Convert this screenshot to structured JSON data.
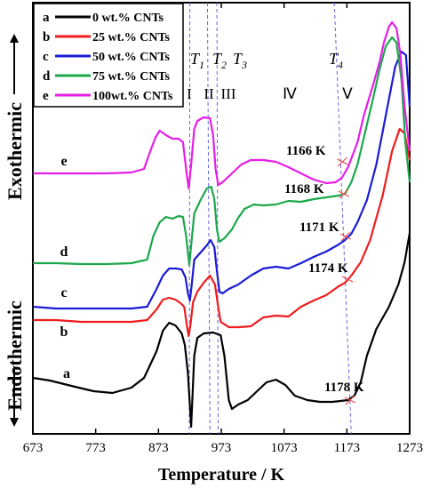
{
  "chart_data": {
    "type": "line",
    "xlabel": "Temperature / K",
    "ylabel_top": "Exothermic",
    "ylabel_bottom": "Endothermic",
    "xlim": [
      673,
      1273
    ],
    "xticks": [
      673,
      773,
      873,
      973,
      1073,
      1173,
      1273
    ],
    "legend": {
      "position": "top-left",
      "entries": [
        {
          "key": "a",
          "label": "0 wt.% CNTs",
          "color": "#000000"
        },
        {
          "key": "b",
          "label": "25 wt.% CNTs",
          "color": "#ee1c1c"
        },
        {
          "key": "c",
          "label": "50 wt.% CNTs",
          "color": "#1b1bd6"
        },
        {
          "key": "d",
          "label": "75 wt.% CNTs",
          "color": "#1ca84a"
        },
        {
          "key": "e",
          "label": "100wt.% CNTs",
          "color": "#e61ee6"
        }
      ]
    },
    "transition_lines": [
      {
        "label": "T",
        "sub": "1",
        "x_top": 923,
        "x_bottom": 922
      },
      {
        "label": "T",
        "sub": "2",
        "x_top": 951,
        "x_bottom": 955
      },
      {
        "label": "T",
        "sub": "3",
        "x_top": 966,
        "x_bottom": 968
      },
      {
        "label": "T",
        "sub": "4",
        "x_top": 1153,
        "x_bottom": 1180
      }
    ],
    "regions": [
      "I",
      "II",
      "III",
      "Ⅳ",
      "Ⅴ"
    ],
    "series": [
      {
        "key": "a",
        "color": "#000000",
        "annotation": "1178 K",
        "points": [
          [
            673,
            425
          ],
          [
            700,
            428
          ],
          [
            740,
            435
          ],
          [
            770,
            440
          ],
          [
            800,
            442
          ],
          [
            830,
            436
          ],
          [
            850,
            425
          ],
          [
            870,
            395
          ],
          [
            880,
            372
          ],
          [
            890,
            363
          ],
          [
            900,
            366
          ],
          [
            910,
            375
          ],
          [
            915,
            388
          ],
          [
            920,
            420
          ],
          [
            925,
            480
          ],
          [
            930,
            400
          ],
          [
            935,
            380
          ],
          [
            945,
            375
          ],
          [
            960,
            374
          ],
          [
            972,
            377
          ],
          [
            978,
            400
          ],
          [
            985,
            450
          ],
          [
            990,
            460
          ],
          [
            1000,
            455
          ],
          [
            1015,
            450
          ],
          [
            1030,
            440
          ],
          [
            1045,
            430
          ],
          [
            1060,
            427
          ],
          [
            1075,
            433
          ],
          [
            1090,
            445
          ],
          [
            1110,
            450
          ],
          [
            1130,
            452
          ],
          [
            1150,
            452
          ],
          [
            1175,
            450
          ],
          [
            1185,
            445
          ],
          [
            1195,
            430
          ],
          [
            1205,
            400
          ],
          [
            1220,
            370
          ],
          [
            1240,
            345
          ],
          [
            1255,
            320
          ],
          [
            1265,
            295
          ],
          [
            1273,
            262
          ]
        ]
      },
      {
        "key": "b",
        "color": "#ee1c1c",
        "annotation": "1174 K",
        "points": [
          [
            673,
            360
          ],
          [
            710,
            360
          ],
          [
            750,
            362
          ],
          [
            790,
            362
          ],
          [
            830,
            362
          ],
          [
            855,
            360
          ],
          [
            870,
            348
          ],
          [
            880,
            337
          ],
          [
            890,
            335
          ],
          [
            900,
            337
          ],
          [
            908,
            341
          ],
          [
            914,
            345
          ],
          [
            918,
            365
          ],
          [
            921,
            378
          ],
          [
            924,
            365
          ],
          [
            928,
            340
          ],
          [
            935,
            328
          ],
          [
            945,
            318
          ],
          [
            955,
            310
          ],
          [
            963,
            320
          ],
          [
            968,
            345
          ],
          [
            972,
            362
          ],
          [
            985,
            368
          ],
          [
            1000,
            368
          ],
          [
            1020,
            367
          ],
          [
            1040,
            357
          ],
          [
            1060,
            355
          ],
          [
            1080,
            356
          ],
          [
            1100,
            345
          ],
          [
            1120,
            338
          ],
          [
            1140,
            332
          ],
          [
            1160,
            322
          ],
          [
            1170,
            318
          ],
          [
            1180,
            310
          ],
          [
            1195,
            295
          ],
          [
            1210,
            270
          ],
          [
            1230,
            220
          ],
          [
            1245,
            170
          ],
          [
            1257,
            145
          ],
          [
            1265,
            150
          ],
          [
            1273,
            180
          ]
        ]
      },
      {
        "key": "c",
        "color": "#1b1bd6",
        "annotation": "1171 K",
        "points": [
          [
            673,
            345
          ],
          [
            710,
            347
          ],
          [
            750,
            347
          ],
          [
            790,
            347
          ],
          [
            830,
            347
          ],
          [
            855,
            345
          ],
          [
            870,
            325
          ],
          [
            880,
            310
          ],
          [
            890,
            302
          ],
          [
            900,
            302
          ],
          [
            910,
            303
          ],
          [
            916,
            312
          ],
          [
            920,
            330
          ],
          [
            923,
            338
          ],
          [
            926,
            320
          ],
          [
            930,
            292
          ],
          [
            940,
            284
          ],
          [
            950,
            276
          ],
          [
            956,
            270
          ],
          [
            962,
            278
          ],
          [
            966,
            305
          ],
          [
            970,
            328
          ],
          [
            975,
            330
          ],
          [
            985,
            325
          ],
          [
            1000,
            320
          ],
          [
            1020,
            310
          ],
          [
            1040,
            302
          ],
          [
            1060,
            300
          ],
          [
            1080,
            302
          ],
          [
            1100,
            296
          ],
          [
            1120,
            289
          ],
          [
            1140,
            283
          ],
          [
            1160,
            275
          ],
          [
            1170,
            270
          ],
          [
            1180,
            263
          ],
          [
            1190,
            250
          ],
          [
            1205,
            225
          ],
          [
            1220,
            185
          ],
          [
            1235,
            130
          ],
          [
            1250,
            75
          ],
          [
            1260,
            58
          ],
          [
            1267,
            62
          ],
          [
            1273,
            120
          ]
        ]
      },
      {
        "key": "d",
        "color": "#1ca84a",
        "annotation": "1168 K",
        "points": [
          [
            673,
            296
          ],
          [
            710,
            296
          ],
          [
            750,
            297
          ],
          [
            790,
            297
          ],
          [
            830,
            296
          ],
          [
            855,
            292
          ],
          [
            865,
            265
          ],
          [
            875,
            250
          ],
          [
            885,
            244
          ],
          [
            895,
            246
          ],
          [
            905,
            243
          ],
          [
            912,
            244
          ],
          [
            917,
            265
          ],
          [
            922,
            298
          ],
          [
            925,
            276
          ],
          [
            930,
            240
          ],
          [
            940,
            225
          ],
          [
            950,
            212
          ],
          [
            957,
            210
          ],
          [
            962,
            224
          ],
          [
            966,
            258
          ],
          [
            970,
            272
          ],
          [
            978,
            268
          ],
          [
            990,
            258
          ],
          [
            1000,
            245
          ],
          [
            1010,
            235
          ],
          [
            1025,
            230
          ],
          [
            1040,
            231
          ],
          [
            1060,
            230
          ],
          [
            1080,
            226
          ],
          [
            1100,
            227
          ],
          [
            1120,
            224
          ],
          [
            1140,
            222
          ],
          [
            1160,
            220
          ],
          [
            1170,
            218
          ],
          [
            1180,
            205
          ],
          [
            1190,
            185
          ],
          [
            1200,
            155
          ],
          [
            1215,
            110
          ],
          [
            1225,
            78
          ],
          [
            1235,
            52
          ],
          [
            1245,
            42
          ],
          [
            1252,
            48
          ],
          [
            1260,
            90
          ],
          [
            1266,
            160
          ],
          [
            1273,
            205
          ]
        ]
      },
      {
        "key": "e",
        "color": "#e61ee6",
        "annotation": "1166 K",
        "points": [
          [
            673,
            195
          ],
          [
            710,
            195
          ],
          [
            750,
            195
          ],
          [
            790,
            195
          ],
          [
            830,
            194
          ],
          [
            850,
            190
          ],
          [
            860,
            170
          ],
          [
            868,
            155
          ],
          [
            875,
            147
          ],
          [
            885,
            152
          ],
          [
            895,
            156
          ],
          [
            905,
            156
          ],
          [
            912,
            160
          ],
          [
            917,
            190
          ],
          [
            921,
            212
          ],
          [
            925,
            185
          ],
          [
            930,
            145
          ],
          [
            935,
            136
          ],
          [
            945,
            132
          ],
          [
            955,
            133
          ],
          [
            960,
            152
          ],
          [
            964,
            190
          ],
          [
            968,
            208
          ],
          [
            975,
            205
          ],
          [
            990,
            195
          ],
          [
            1005,
            185
          ],
          [
            1020,
            180
          ],
          [
            1040,
            180
          ],
          [
            1060,
            182
          ],
          [
            1080,
            188
          ],
          [
            1100,
            195
          ],
          [
            1120,
            202
          ],
          [
            1140,
            206
          ],
          [
            1155,
            205
          ],
          [
            1165,
            200
          ],
          [
            1175,
            188
          ],
          [
            1190,
            160
          ],
          [
            1200,
            130
          ],
          [
            1215,
            95
          ],
          [
            1225,
            70
          ],
          [
            1232,
            48
          ],
          [
            1240,
            30
          ],
          [
            1245,
            25
          ],
          [
            1252,
            32
          ],
          [
            1258,
            60
          ],
          [
            1265,
            120
          ],
          [
            1273,
            170
          ]
        ]
      }
    ]
  },
  "arrows": {
    "up": "up-arrow",
    "down": "down-arrow"
  }
}
